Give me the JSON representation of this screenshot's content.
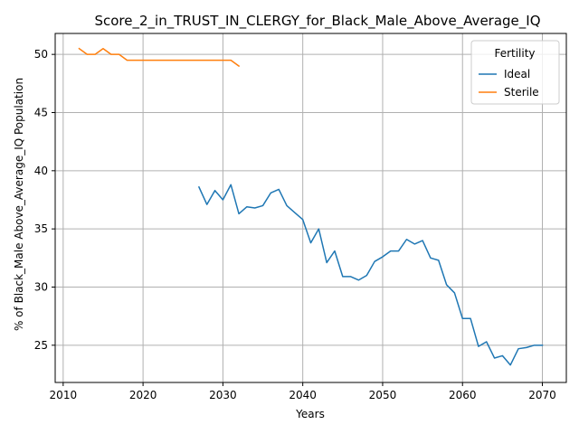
{
  "chart_data": {
    "type": "line",
    "title": "Score_2_in_TRUST_IN_CLERGY_for_Black_Male_Above_Average_IQ",
    "xlabel": "Years",
    "ylabel": "% of Black_Male Above_Average_IQ Population",
    "xlim": [
      2009,
      2073
    ],
    "ylim": [
      21.8,
      51.8
    ],
    "xticks": [
      2010,
      2020,
      2030,
      2040,
      2050,
      2060,
      2070
    ],
    "yticks": [
      25,
      30,
      35,
      40,
      45,
      50
    ],
    "grid": true,
    "legend": {
      "title": "Fertility",
      "placement": "top-right"
    },
    "series": [
      {
        "name": "Ideal",
        "color": "#1f77b4",
        "points": [
          [
            2027,
            38.6
          ],
          [
            2028,
            37.1
          ],
          [
            2029,
            38.3
          ],
          [
            2030,
            37.5
          ],
          [
            2031,
            38.8
          ],
          [
            2032,
            36.3
          ],
          [
            2033,
            36.9
          ],
          [
            2034,
            36.8
          ],
          [
            2035,
            37.0
          ],
          [
            2036,
            38.1
          ],
          [
            2037,
            38.4
          ],
          [
            2038,
            37.0
          ],
          [
            2039,
            36.4
          ],
          [
            2040,
            35.8
          ],
          [
            2041,
            33.8
          ],
          [
            2042,
            35.0
          ],
          [
            2043,
            32.1
          ],
          [
            2044,
            33.1
          ],
          [
            2045,
            30.9
          ],
          [
            2046,
            30.9
          ],
          [
            2047,
            30.6
          ],
          [
            2048,
            31.0
          ],
          [
            2049,
            32.2
          ],
          [
            2050,
            32.6
          ],
          [
            2051,
            33.1
          ],
          [
            2052,
            33.1
          ],
          [
            2053,
            34.1
          ],
          [
            2054,
            33.7
          ],
          [
            2055,
            34.0
          ],
          [
            2056,
            32.5
          ],
          [
            2057,
            32.3
          ],
          [
            2058,
            30.2
          ],
          [
            2059,
            29.5
          ],
          [
            2060,
            27.3
          ],
          [
            2061,
            27.3
          ],
          [
            2062,
            24.9
          ],
          [
            2063,
            25.3
          ],
          [
            2064,
            23.9
          ],
          [
            2065,
            24.1
          ],
          [
            2066,
            23.3
          ],
          [
            2067,
            24.7
          ],
          [
            2068,
            24.8
          ],
          [
            2069,
            25.0
          ],
          [
            2070,
            25.0
          ]
        ]
      },
      {
        "name": "Sterile",
        "color": "#ff7f0e",
        "points": [
          [
            2012,
            50.5
          ],
          [
            2013,
            50.0
          ],
          [
            2014,
            50.0
          ],
          [
            2015,
            50.5
          ],
          [
            2016,
            50.0
          ],
          [
            2017,
            50.0
          ],
          [
            2018,
            49.5
          ],
          [
            2019,
            49.5
          ],
          [
            2020,
            49.5
          ],
          [
            2021,
            49.5
          ],
          [
            2022,
            49.5
          ],
          [
            2023,
            49.5
          ],
          [
            2024,
            49.5
          ],
          [
            2025,
            49.5
          ],
          [
            2026,
            49.5
          ],
          [
            2027,
            49.5
          ],
          [
            2028,
            49.5
          ],
          [
            2029,
            49.5
          ],
          [
            2030,
            49.5
          ],
          [
            2031,
            49.5
          ],
          [
            2032,
            49.0
          ]
        ]
      }
    ]
  }
}
